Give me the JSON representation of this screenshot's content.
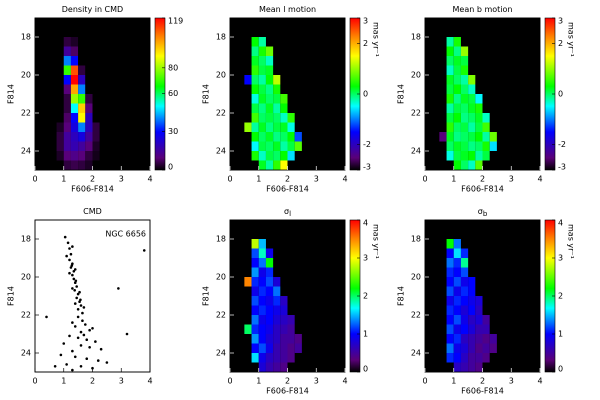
{
  "chart_data": [
    {
      "type": "heatmap",
      "title": "Density in CMD",
      "xlabel": "F606-F814",
      "ylabel": "F814",
      "xlim": [
        0,
        4
      ],
      "xticks": [
        0,
        1,
        2,
        3,
        4
      ],
      "ylim": [
        25,
        17
      ],
      "yticks": [
        18,
        20,
        22,
        24
      ],
      "x_edges": [
        0.5,
        0.75,
        1,
        1.25,
        1.5,
        1.75,
        2,
        2.25,
        2.5
      ],
      "y_edges": [
        18,
        18.5,
        19,
        19.5,
        20,
        20.5,
        21,
        21.5,
        22,
        22.5,
        23,
        23.5,
        24,
        24.5,
        25
      ],
      "zlim": [
        0,
        119
      ],
      "cbar_ticks": [
        0,
        30,
        60,
        80,
        119
      ],
      "background": "#000000",
      "z": [
        [
          0,
          0,
          5,
          3,
          0,
          0,
          0,
          0
        ],
        [
          0,
          0,
          15,
          8,
          0,
          0,
          0,
          0
        ],
        [
          0,
          0,
          40,
          30,
          0,
          0,
          0,
          0
        ],
        [
          0,
          0,
          70,
          110,
          5,
          0,
          0,
          0
        ],
        [
          0,
          0,
          30,
          119,
          20,
          0,
          0,
          0
        ],
        [
          0,
          0,
          10,
          100,
          40,
          0,
          0,
          0
        ],
        [
          0,
          0,
          5,
          80,
          70,
          5,
          0,
          0
        ],
        [
          0,
          0,
          5,
          50,
          95,
          10,
          0,
          0
        ],
        [
          0,
          0,
          8,
          30,
          90,
          20,
          0,
          0
        ],
        [
          0,
          3,
          10,
          25,
          40,
          20,
          5,
          0
        ],
        [
          0,
          5,
          15,
          20,
          25,
          15,
          5,
          0
        ],
        [
          0,
          5,
          15,
          18,
          15,
          10,
          3,
          0
        ],
        [
          0,
          3,
          10,
          12,
          10,
          5,
          2,
          0
        ],
        [
          0,
          0,
          5,
          6,
          5,
          3,
          0,
          0
        ]
      ]
    },
    {
      "type": "heatmap",
      "title": "Mean l motion",
      "xlabel": "F606-F814",
      "ylabel": "F814",
      "cbar_label": "mas yr⁻¹",
      "xlim": [
        0,
        4
      ],
      "xticks": [
        0,
        1,
        2,
        3,
        4
      ],
      "ylim": [
        25,
        17
      ],
      "yticks": [
        18,
        20,
        22,
        24
      ],
      "x_edges": [
        0.5,
        0.75,
        1,
        1.25,
        1.5,
        1.75,
        2,
        2.25,
        2.5
      ],
      "y_edges": [
        18,
        18.5,
        19,
        19.5,
        20,
        20.5,
        21,
        21.5,
        22,
        22.5,
        23,
        23.5,
        24,
        24.5,
        25
      ],
      "zlim": [
        -3,
        3
      ],
      "cbar_ticks": [
        -3,
        -2,
        0,
        2,
        3
      ],
      "background": "#000000",
      "z": [
        [
          null,
          0.3,
          -0.2,
          null,
          null,
          null,
          null,
          null
        ],
        [
          null,
          -0.1,
          0.4,
          0.8,
          null,
          null,
          null,
          null
        ],
        [
          null,
          0.2,
          0,
          -0.3,
          null,
          null,
          null,
          null
        ],
        [
          null,
          0.5,
          0.1,
          0.2,
          null,
          null,
          null,
          null
        ],
        [
          -1.5,
          0,
          -0.2,
          0.3,
          1.2,
          null,
          null,
          null
        ],
        [
          null,
          0.3,
          0.1,
          -0.1,
          0.4,
          null,
          null,
          null
        ],
        [
          null,
          -0.4,
          0.2,
          0,
          0.1,
          0.6,
          null,
          null
        ],
        [
          null,
          0.1,
          -0.1,
          0.2,
          -0.2,
          0.3,
          null,
          null
        ],
        [
          null,
          0.6,
          0,
          0.1,
          0,
          -0.3,
          0.5,
          null
        ],
        [
          1,
          -0.2,
          0.2,
          -0.1,
          0.1,
          0.2,
          -0.4,
          null
        ],
        [
          null,
          0.3,
          0,
          0.2,
          -0.1,
          0,
          0.3,
          -1.2
        ],
        [
          null,
          -0.5,
          0.1,
          0,
          0.2,
          -0.2,
          0.1,
          0.7
        ],
        [
          null,
          0.4,
          -0.3,
          0.1,
          0,
          0.3,
          -0.6,
          null
        ],
        [
          null,
          null,
          0.2,
          -0.2,
          0.5,
          1.5,
          null,
          null
        ]
      ]
    },
    {
      "type": "heatmap",
      "title": "Mean b motion",
      "xlabel": "F606-F814",
      "ylabel": "F814",
      "cbar_label": "mas yr⁻¹",
      "xlim": [
        0,
        4
      ],
      "xticks": [
        0,
        1,
        2,
        3,
        4
      ],
      "ylim": [
        25,
        17
      ],
      "yticks": [
        18,
        20,
        22,
        24
      ],
      "x_edges": [
        0.5,
        0.75,
        1,
        1.25,
        1.5,
        1.75,
        2,
        2.25,
        2.5
      ],
      "y_edges": [
        18,
        18.5,
        19,
        19.5,
        20,
        20.5,
        21,
        21.5,
        22,
        22.5,
        23,
        23.5,
        24,
        24.5,
        25
      ],
      "zlim": [
        -3,
        3
      ],
      "cbar_ticks": [
        -3,
        -2,
        0,
        2,
        3
      ],
      "background": "#000000",
      "z": [
        [
          null,
          -0.2,
          0.4,
          null,
          null,
          null,
          null,
          null
        ],
        [
          null,
          0.3,
          -0.1,
          1,
          null,
          null,
          null,
          null
        ],
        [
          null,
          0,
          0.2,
          0.1,
          null,
          null,
          null,
          null
        ],
        [
          null,
          -0.3,
          0.1,
          0.4,
          null,
          null,
          null,
          null
        ],
        [
          null,
          0.2,
          0,
          -0.2,
          0.9,
          null,
          null,
          null
        ],
        [
          null,
          0.1,
          0.3,
          0,
          -0.3,
          null,
          null,
          null
        ],
        [
          null,
          0.4,
          -0.1,
          0.2,
          0.1,
          -0.5,
          null,
          null
        ],
        [
          null,
          -0.2,
          0.1,
          0,
          0.2,
          0.4,
          null,
          null
        ],
        [
          null,
          0.1,
          0.3,
          -0.1,
          0,
          0.2,
          -0.3,
          null
        ],
        [
          null,
          0.5,
          0,
          0.1,
          -0.2,
          0.1,
          0.6,
          null
        ],
        [
          -2.5,
          0.2,
          -0.1,
          0,
          0.1,
          0.3,
          -0.2,
          0.8
        ],
        [
          null,
          0,
          0.2,
          0.1,
          -0.1,
          0,
          0.4,
          -0.6
        ],
        [
          null,
          -0.4,
          0.1,
          0.2,
          0.3,
          -0.2,
          0.1,
          null
        ],
        [
          null,
          null,
          0.3,
          0,
          -0.3,
          0.7,
          null,
          null
        ]
      ]
    },
    {
      "type": "scatter",
      "title": "CMD",
      "ylabel": "F814",
      "annotation": "NGC 6656",
      "color": "#000000",
      "xlim": [
        0,
        4
      ],
      "xticks": [
        0,
        1,
        2,
        3,
        4
      ],
      "ylim": [
        25,
        17
      ],
      "yticks": [
        18,
        20,
        22,
        24
      ],
      "x": [
        1.15,
        1.2,
        1.25,
        1.1,
        1.3,
        1.05,
        1.2,
        1.3,
        1.25,
        1.35,
        1.3,
        1.4,
        1.2,
        1.28,
        1.35,
        1.4,
        1.45,
        1.38,
        1.5,
        1.42,
        1.3,
        1.55,
        1.45,
        1.55,
        1.6,
        1.5,
        1.65,
        1.4,
        1.7,
        1.58,
        1.5,
        1.65,
        1.75,
        1.4,
        1.9,
        1.6,
        1.3,
        2.0,
        1.2,
        1.5,
        1.8,
        2.1,
        1.0,
        1.6,
        1.9,
        2.3,
        1.3,
        1.7,
        0.9,
        1.4,
        1.8,
        2.2,
        1.1,
        1.6,
        2.0,
        2.5,
        1.3,
        0.7,
        2.9,
        0.4,
        3.2,
        3.8
      ],
      "y": [
        18.2,
        18.5,
        18.8,
        18.9,
        18.4,
        17.9,
        19.1,
        19.3,
        19.5,
        19.7,
        19.9,
        19.6,
        19.8,
        19.4,
        20.1,
        20.3,
        20.5,
        20.7,
        20.9,
        20.2,
        20.6,
        20.8,
        21.1,
        21.3,
        21.5,
        21.7,
        21.9,
        21.4,
        21.6,
        21.2,
        22.1,
        22.3,
        22.5,
        22.6,
        22.8,
        22.9,
        22.4,
        22.7,
        23.1,
        23.2,
        23.3,
        23.4,
        23.5,
        23.6,
        23.7,
        23.8,
        23.9,
        23.05,
        24.1,
        24.2,
        24.3,
        24.4,
        24.6,
        24.7,
        24.8,
        24.5,
        24.9,
        24.7,
        20.6,
        22.1,
        23.0,
        18.6
      ]
    },
    {
      "type": "heatmap",
      "title": "σ",
      "title_sub": "l",
      "xlabel": "F606-F814",
      "ylabel": "F814",
      "cbar_label": "mas yr⁻¹",
      "xlim": [
        0,
        4
      ],
      "xticks": [
        0,
        1,
        2,
        3,
        4
      ],
      "ylim": [
        25,
        17
      ],
      "yticks": [
        18,
        20,
        22,
        24
      ],
      "x_edges": [
        0.5,
        0.75,
        1,
        1.25,
        1.5,
        1.75,
        2,
        2.25,
        2.5
      ],
      "y_edges": [
        18,
        18.5,
        19,
        19.5,
        20,
        20.5,
        21,
        21.5,
        22,
        22.5,
        23,
        23.5,
        24,
        24.5,
        25
      ],
      "zlim": [
        0,
        4
      ],
      "cbar_ticks": [
        0,
        1,
        2,
        3,
        4
      ],
      "background": "#000000",
      "z": [
        [
          null,
          2.8,
          1.5,
          null,
          null,
          null,
          null,
          null
        ],
        [
          null,
          1.2,
          1.8,
          0.9,
          null,
          null,
          null,
          null
        ],
        [
          null,
          1,
          1.3,
          2.2,
          null,
          null,
          null,
          null
        ],
        [
          null,
          1.4,
          0.9,
          1.1,
          null,
          null,
          null,
          null
        ],
        [
          3.5,
          1.1,
          1,
          1.2,
          0.8,
          null,
          null,
          null
        ],
        [
          null,
          0.9,
          1.1,
          1,
          1.3,
          null,
          null,
          null
        ],
        [
          null,
          1.2,
          1,
          0.9,
          1.1,
          0.7,
          null,
          null
        ],
        [
          null,
          1,
          1.1,
          1,
          0.9,
          0.8,
          null,
          null
        ],
        [
          null,
          1.3,
          0.9,
          1,
          0.8,
          0.7,
          0.6,
          null
        ],
        [
          2,
          1.1,
          1,
          0.9,
          0.7,
          0.6,
          0.5,
          null
        ],
        [
          null,
          1.4,
          1,
          0.8,
          0.7,
          0.5,
          0.5,
          0.4
        ],
        [
          null,
          1,
          1.2,
          0.9,
          0.6,
          0.5,
          0.4,
          0.5
        ],
        [
          null,
          1.6,
          0.9,
          0.7,
          0.6,
          0.5,
          0.4,
          null
        ],
        [
          null,
          null,
          0.8,
          0.6,
          0.5,
          0.4,
          null,
          null
        ]
      ]
    },
    {
      "type": "heatmap",
      "title": "σ",
      "title_sub": "b",
      "xlabel": "F606-F814",
      "ylabel": "F814",
      "cbar_label": "mas yr⁻¹",
      "xlim": [
        0,
        4
      ],
      "xticks": [
        0,
        1,
        2,
        3,
        4
      ],
      "ylim": [
        25,
        17
      ],
      "yticks": [
        18,
        20,
        22,
        24
      ],
      "x_edges": [
        0.5,
        0.75,
        1,
        1.25,
        1.5,
        1.75,
        2,
        2.25,
        2.5
      ],
      "y_edges": [
        18,
        18.5,
        19,
        19.5,
        20,
        20.5,
        21,
        21.5,
        22,
        22.5,
        23,
        23.5,
        24,
        24.5,
        25
      ],
      "zlim": [
        0,
        4
      ],
      "cbar_ticks": [
        0,
        1,
        2,
        3,
        4
      ],
      "background": "#000000",
      "z": [
        [
          null,
          2.2,
          1.3,
          null,
          null,
          null,
          null,
          null
        ],
        [
          null,
          1,
          1.6,
          1.1,
          null,
          null,
          null,
          null
        ],
        [
          null,
          1.3,
          1.1,
          1.9,
          null,
          null,
          null,
          null
        ],
        [
          null,
          1.1,
          1,
          1.2,
          null,
          null,
          null,
          null
        ],
        [
          null,
          1,
          1.2,
          0.9,
          1,
          null,
          null,
          null
        ],
        [
          null,
          1.2,
          0.9,
          1.1,
          1,
          null,
          null,
          null
        ],
        [
          null,
          0.9,
          1.1,
          1,
          0.9,
          0.8,
          null,
          null
        ],
        [
          null,
          1.1,
          1,
          0.8,
          1,
          0.7,
          null,
          null
        ],
        [
          null,
          1,
          1.2,
          0.9,
          0.7,
          0.8,
          0.5,
          null
        ],
        [
          null,
          1.2,
          0.9,
          1,
          0.8,
          0.6,
          0.6,
          null
        ],
        [
          null,
          1,
          1.1,
          0.7,
          0.6,
          0.5,
          0.4,
          0.5
        ],
        [
          null,
          1.3,
          0.9,
          0.8,
          0.6,
          0.4,
          0.5,
          0.4
        ],
        [
          null,
          1.1,
          1,
          0.7,
          0.5,
          0.5,
          0.4,
          null
        ],
        [
          null,
          null,
          0.7,
          0.6,
          0.5,
          0.4,
          null,
          null
        ]
      ]
    }
  ]
}
